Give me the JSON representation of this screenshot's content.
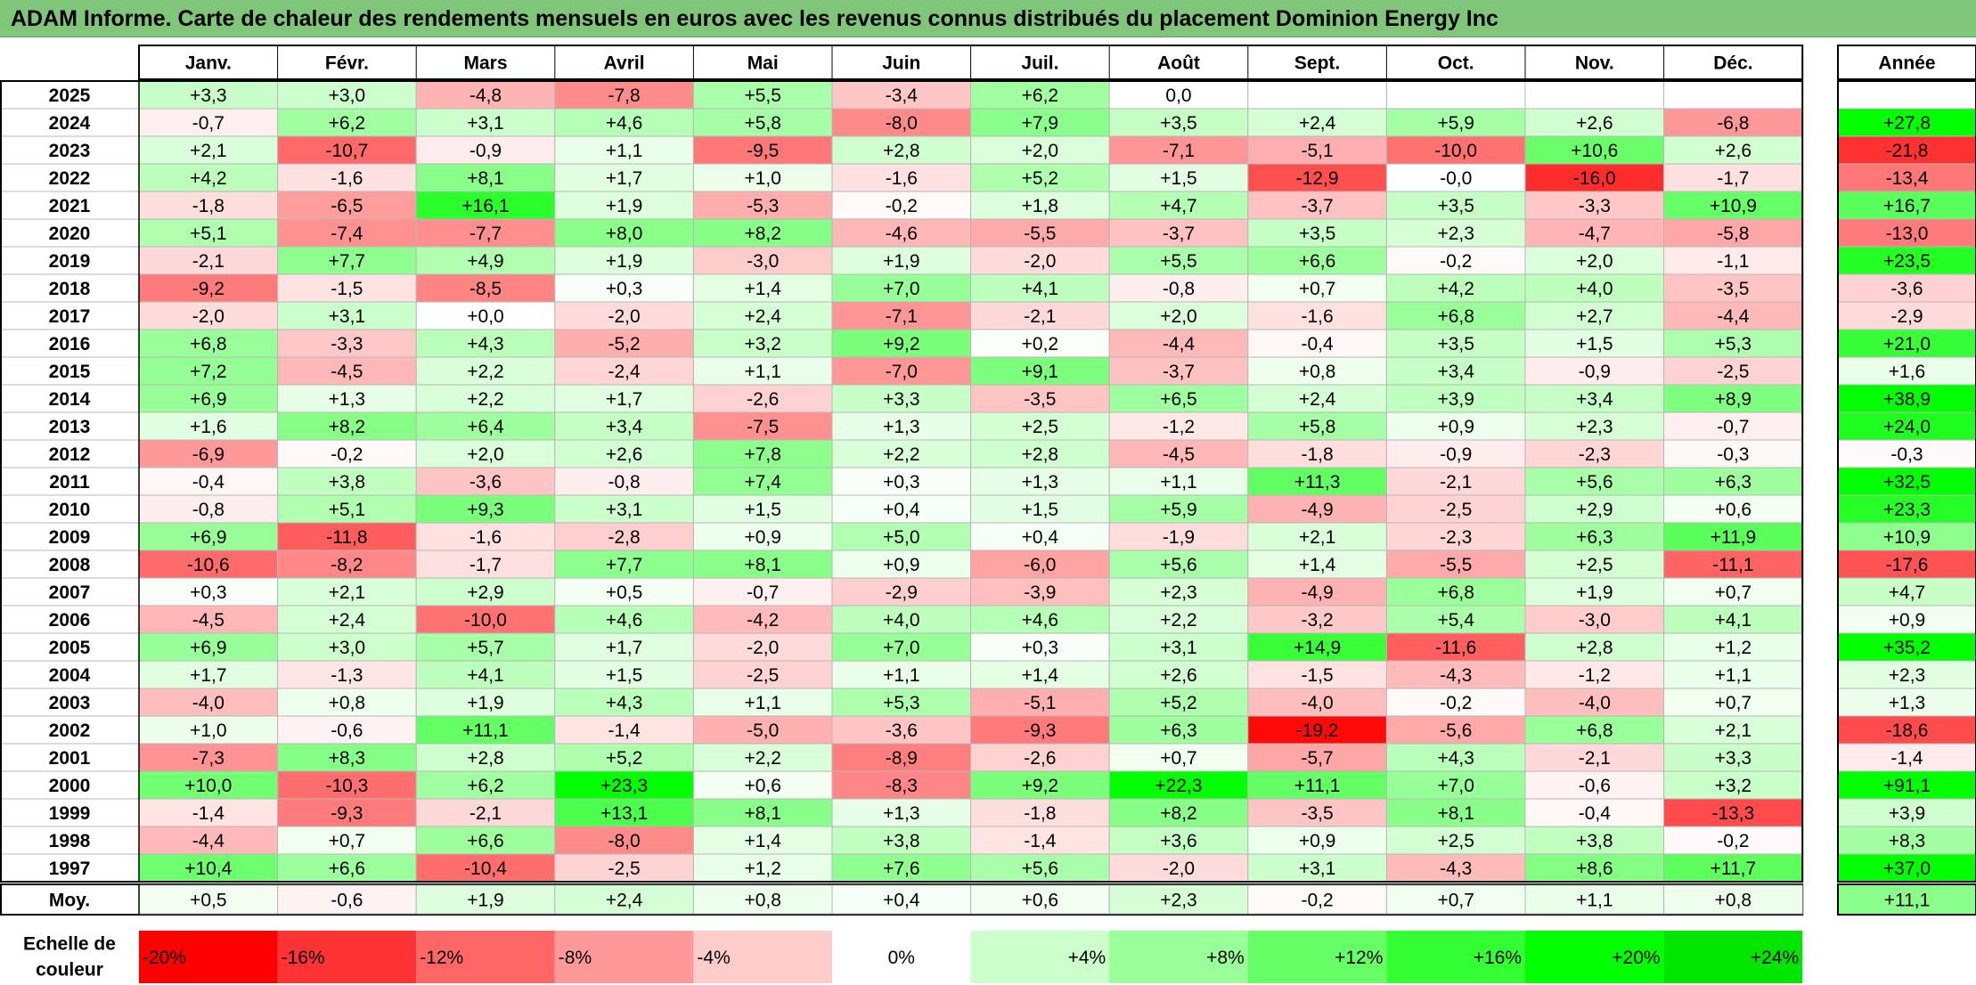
{
  "title": "ADAM Informe. Carte de chaleur des rendements mensuels en euros avec les revenus connus distribués du placement Dominion Energy Inc",
  "chart_data": {
    "type": "heatmap",
    "columns": [
      "Janv.",
      "Févr.",
      "Mars",
      "Avril",
      "Mai",
      "Juin",
      "Juil.",
      "Août",
      "Sept.",
      "Oct.",
      "Nov.",
      "Déc."
    ],
    "year_column_label": "Année",
    "rows": [
      {
        "year": "2025",
        "values": [
          "+3,3",
          "+3,0",
          "-4,8",
          "-7,8",
          "+5,5",
          "-3,4",
          "+6,2",
          "0,0",
          "",
          "",
          "",
          ""
        ],
        "annual": ""
      },
      {
        "year": "2024",
        "values": [
          "-0,7",
          "+6,2",
          "+3,1",
          "+4,6",
          "+5,8",
          "-8,0",
          "+7,9",
          "+3,5",
          "+2,4",
          "+5,9",
          "+2,6",
          "-6,8"
        ],
        "annual": "+27,8"
      },
      {
        "year": "2023",
        "values": [
          "+2,1",
          "-10,7",
          "-0,9",
          "+1,1",
          "-9,5",
          "+2,8",
          "+2,0",
          "-7,1",
          "-5,1",
          "-10,0",
          "+10,6",
          "+2,6"
        ],
        "annual": "-21,8"
      },
      {
        "year": "2022",
        "values": [
          "+4,2",
          "-1,6",
          "+8,1",
          "+1,7",
          "+1,0",
          "-1,6",
          "+5,2",
          "+1,5",
          "-12,9",
          "-0,0",
          "-16,0",
          "-1,7"
        ],
        "annual": "-13,4"
      },
      {
        "year": "2021",
        "values": [
          "-1,8",
          "-6,5",
          "+16,1",
          "+1,9",
          "-5,3",
          "-0,2",
          "+1,8",
          "+4,7",
          "-3,7",
          "+3,5",
          "-3,3",
          "+10,9"
        ],
        "annual": "+16,7"
      },
      {
        "year": "2020",
        "values": [
          "+5,1",
          "-7,4",
          "-7,7",
          "+8,0",
          "+8,2",
          "-4,6",
          "-5,5",
          "-3,7",
          "+3,5",
          "+2,3",
          "-4,7",
          "-5,8"
        ],
        "annual": "-13,0"
      },
      {
        "year": "2019",
        "values": [
          "-2,1",
          "+7,7",
          "+4,9",
          "+1,9",
          "-3,0",
          "+1,9",
          "-2,0",
          "+5,5",
          "+6,6",
          "-0,2",
          "+2,0",
          "-1,1"
        ],
        "annual": "+23,5"
      },
      {
        "year": "2018",
        "values": [
          "-9,2",
          "-1,5",
          "-8,5",
          "+0,3",
          "+1,4",
          "+7,0",
          "+4,1",
          "-0,8",
          "+0,7",
          "+4,2",
          "+4,0",
          "-3,5"
        ],
        "annual": "-3,6"
      },
      {
        "year": "2017",
        "values": [
          "-2,0",
          "+3,1",
          "+0,0",
          "-2,0",
          "+2,4",
          "-7,1",
          "-2,1",
          "+2,0",
          "-1,6",
          "+6,8",
          "+2,7",
          "-4,4"
        ],
        "annual": "-2,9"
      },
      {
        "year": "2016",
        "values": [
          "+6,8",
          "-3,3",
          "+4,3",
          "-5,2",
          "+3,2",
          "+9,2",
          "+0,2",
          "-4,4",
          "-0,4",
          "+3,5",
          "+1,5",
          "+5,3"
        ],
        "annual": "+21,0"
      },
      {
        "year": "2015",
        "values": [
          "+7,2",
          "-4,5",
          "+2,2",
          "-2,4",
          "+1,1",
          "-7,0",
          "+9,1",
          "-3,7",
          "+0,8",
          "+3,4",
          "-0,9",
          "-2,5"
        ],
        "annual": "+1,6"
      },
      {
        "year": "2014",
        "values": [
          "+6,9",
          "+1,3",
          "+2,2",
          "+1,7",
          "-2,6",
          "+3,3",
          "-3,5",
          "+6,5",
          "+2,4",
          "+3,9",
          "+3,4",
          "+8,9"
        ],
        "annual": "+38,9"
      },
      {
        "year": "2013",
        "values": [
          "+1,6",
          "+8,2",
          "+6,4",
          "+3,4",
          "-7,5",
          "+1,3",
          "+2,5",
          "-1,2",
          "+5,8",
          "+0,9",
          "+2,3",
          "-0,7"
        ],
        "annual": "+24,0"
      },
      {
        "year": "2012",
        "values": [
          "-6,9",
          "-0,2",
          "+2,0",
          "+2,6",
          "+7,8",
          "+2,2",
          "+2,8",
          "-4,5",
          "-1,8",
          "-0,9",
          "-2,3",
          "-0,3"
        ],
        "annual": "-0,3"
      },
      {
        "year": "2011",
        "values": [
          "-0,4",
          "+3,8",
          "-3,6",
          "-0,8",
          "+7,4",
          "+0,3",
          "+1,3",
          "+1,1",
          "+11,3",
          "-2,1",
          "+5,6",
          "+6,3"
        ],
        "annual": "+32,5"
      },
      {
        "year": "2010",
        "values": [
          "-0,8",
          "+5,1",
          "+9,3",
          "+3,1",
          "+1,5",
          "+0,4",
          "+1,5",
          "+5,9",
          "-4,9",
          "-2,5",
          "+2,9",
          "+0,6"
        ],
        "annual": "+23,3"
      },
      {
        "year": "2009",
        "values": [
          "+6,9",
          "-11,8",
          "-1,6",
          "-2,8",
          "+0,9",
          "+5,0",
          "+0,4",
          "-1,9",
          "+2,1",
          "-2,3",
          "+6,3",
          "+11,9"
        ],
        "annual": "+10,9"
      },
      {
        "year": "2008",
        "values": [
          "-10,6",
          "-8,2",
          "-1,7",
          "+7,7",
          "+8,1",
          "+0,9",
          "-6,0",
          "+5,6",
          "+1,4",
          "-5,5",
          "+2,5",
          "-11,1"
        ],
        "annual": "-17,6"
      },
      {
        "year": "2007",
        "values": [
          "+0,3",
          "+2,1",
          "+2,9",
          "+0,5",
          "-0,7",
          "-2,9",
          "-3,9",
          "+2,3",
          "-4,9",
          "+6,8",
          "+1,9",
          "+0,7"
        ],
        "annual": "+4,7"
      },
      {
        "year": "2006",
        "values": [
          "-4,5",
          "+2,4",
          "-10,0",
          "+4,6",
          "-4,2",
          "+4,0",
          "+4,6",
          "+2,2",
          "-3,2",
          "+5,4",
          "-3,0",
          "+4,1"
        ],
        "annual": "+0,9"
      },
      {
        "year": "2005",
        "values": [
          "+6,9",
          "+3,0",
          "+5,7",
          "+1,7",
          "-2,0",
          "+7,0",
          "+0,3",
          "+3,1",
          "+14,9",
          "-11,6",
          "+2,8",
          "+1,2"
        ],
        "annual": "+35,2"
      },
      {
        "year": "2004",
        "values": [
          "+1,7",
          "-1,3",
          "+4,1",
          "+1,5",
          "-2,5",
          "+1,1",
          "+1,4",
          "+2,6",
          "-1,5",
          "-4,3",
          "-1,2",
          "+1,1"
        ],
        "annual": "+2,3"
      },
      {
        "year": "2003",
        "values": [
          "-4,0",
          "+0,8",
          "+1,9",
          "+4,3",
          "+1,1",
          "+5,3",
          "-5,1",
          "+5,2",
          "-4,0",
          "-0,2",
          "-4,0",
          "+0,7"
        ],
        "annual": "+1,3"
      },
      {
        "year": "2002",
        "values": [
          "+1,0",
          "-0,6",
          "+11,1",
          "-1,4",
          "-5,0",
          "-3,6",
          "-9,3",
          "+6,3",
          "-19,2",
          "-5,6",
          "+6,8",
          "+2,1"
        ],
        "annual": "-18,6"
      },
      {
        "year": "2001",
        "values": [
          "-7,3",
          "+8,3",
          "+2,8",
          "+5,2",
          "+2,2",
          "-8,9",
          "-2,6",
          "+0,7",
          "-5,7",
          "+4,3",
          "-2,1",
          "+3,3"
        ],
        "annual": "-1,4"
      },
      {
        "year": "2000",
        "values": [
          "+10,0",
          "-10,3",
          "+6,2",
          "+23,3",
          "+0,6",
          "-8,3",
          "+9,2",
          "+22,3",
          "+11,1",
          "+7,0",
          "-0,6",
          "+3,2"
        ],
        "annual": "+91,1"
      },
      {
        "year": "1999",
        "values": [
          "-1,4",
          "-9,3",
          "-2,1",
          "+13,1",
          "+8,1",
          "+1,3",
          "-1,8",
          "+8,2",
          "-3,5",
          "+8,1",
          "-0,4",
          "-13,3"
        ],
        "annual": "+3,9"
      },
      {
        "year": "1998",
        "values": [
          "-4,4",
          "+0,7",
          "+6,6",
          "-8,0",
          "+1,4",
          "+3,8",
          "-1,4",
          "+3,6",
          "+0,9",
          "+2,5",
          "+3,8",
          "-0,2"
        ],
        "annual": "+8,3"
      },
      {
        "year": "1997",
        "values": [
          "+10,4",
          "+6,6",
          "-10,4",
          "-2,5",
          "+1,2",
          "+7,6",
          "+5,6",
          "-2,0",
          "+3,1",
          "-4,3",
          "+8,6",
          "+11,7"
        ],
        "annual": "+37,0"
      }
    ],
    "average": {
      "label": "Moy.",
      "values": [
        "+0,5",
        "-0,6",
        "+1,9",
        "+2,4",
        "+0,8",
        "+0,4",
        "+0,6",
        "+2,3",
        "-0,2",
        "+0,7",
        "+1,1",
        "+0,8"
      ],
      "annual": "+11,1"
    },
    "scale": {
      "label_line1": "Echelle de",
      "label_line2": "couleur",
      "steps": [
        {
          "label": "-20%",
          "color": "#ff0000"
        },
        {
          "label": "-16%",
          "color": "#ff3333"
        },
        {
          "label": "-12%",
          "color": "#ff6666"
        },
        {
          "label": "-8%",
          "color": "#ff9999"
        },
        {
          "label": "-4%",
          "color": "#ffcccc"
        },
        {
          "label": "0%",
          "color": "#ffffff"
        },
        {
          "label": "+4%",
          "color": "#ccffcc"
        },
        {
          "label": "+8%",
          "color": "#99ff99"
        },
        {
          "label": "+12%",
          "color": "#66ff66"
        },
        {
          "label": "+16%",
          "color": "#33ff33"
        },
        {
          "label": "+20%",
          "color": "#00ff00"
        },
        {
          "label": "+24%",
          "color": "#00e600"
        }
      ]
    },
    "colors": {
      "negative_max": "#ff0000",
      "neutral": "#ffffff",
      "positive_max": "#00ff00",
      "title_bar": "#7fc67a",
      "grid": "#b7b7b7"
    }
  }
}
